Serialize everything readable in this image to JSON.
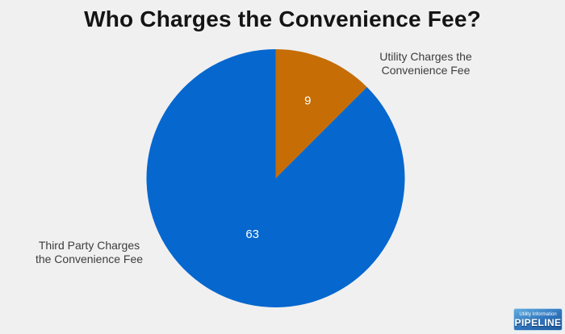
{
  "title": "Who Charges the Convenience Fee?",
  "colors": {
    "background": "#f0f0f1",
    "title_text": "#141414",
    "category_label_text": "#3d3d3d",
    "slice_blue": "#0667ce",
    "slice_orange": "#c66d05",
    "value_label": "#ffffff"
  },
  "chart_data": {
    "type": "pie",
    "title": "Who Charges the Convenience Fee?",
    "start_angle_deg": 0,
    "direction": "clockwise",
    "legend": "none",
    "total": 72,
    "value_label_color": "#ffffff",
    "slices": [
      {
        "name": "utility",
        "label": "Utility Charges the Convenience Fee",
        "label_lines": [
          "Utility Charges the",
          "Convenience Fee"
        ],
        "value": 9,
        "color": "#c66d05"
      },
      {
        "name": "third-party",
        "label": "Third Party Charges the Convenience Fee",
        "label_lines": [
          "Third Party Charges",
          "the Convenience Fee"
        ],
        "value": 63,
        "color": "#0667ce"
      }
    ]
  },
  "logo": {
    "top_text": "Utility Information",
    "bottom_text": "PIPELINE"
  }
}
